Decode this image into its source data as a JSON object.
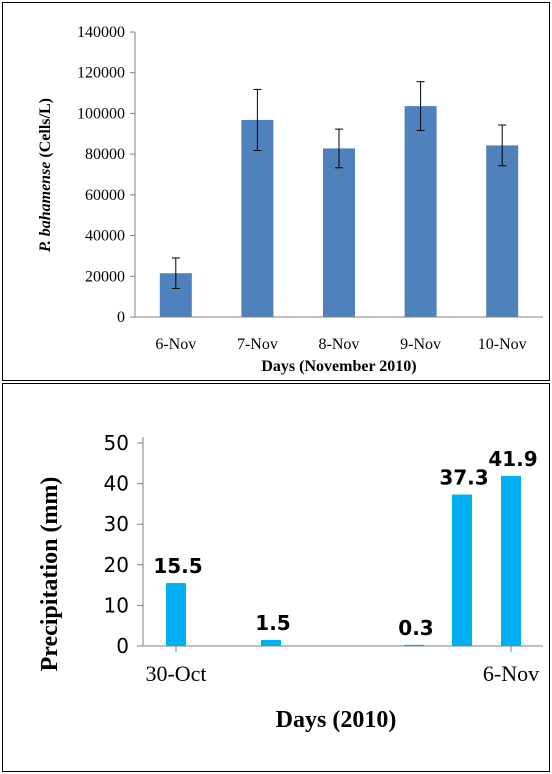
{
  "chart_data": [
    {
      "type": "bar",
      "categories": [
        "6-Nov",
        "7-Nov",
        "8-Nov",
        "9-Nov",
        "10-Nov"
      ],
      "values": [
        21500,
        96800,
        82800,
        103600,
        84300
      ],
      "error": [
        7500,
        15000,
        9500,
        12000,
        10000
      ],
      "ylim": [
        0,
        140000
      ],
      "yticks": [
        "0",
        "20000",
        "40000",
        "60000",
        "80000",
        "100000",
        "120000",
        "140000"
      ],
      "ylabel_italic": "P. bahamense",
      "ylabel_rest": " (Cells/L)",
      "xlabel": "Days (November 2010)",
      "grid": false,
      "bar_color": "#4f81bd"
    },
    {
      "type": "bar",
      "values": [
        15.5,
        1.5,
        0.3,
        37.3,
        41.9
      ],
      "data_labels": [
        "15.5",
        "1.5",
        "0.3",
        "37.3",
        "41.9"
      ],
      "x_tick_labels": [
        "30-Oct",
        "6-Nov"
      ],
      "ylim": [
        0,
        50
      ],
      "yticks": [
        "0",
        "10",
        "20",
        "30",
        "40",
        "50"
      ],
      "ylabel": "Precipitation (mm)",
      "xlabel": "Days (2010)",
      "grid": false,
      "bar_color": "#00b0f0"
    }
  ]
}
